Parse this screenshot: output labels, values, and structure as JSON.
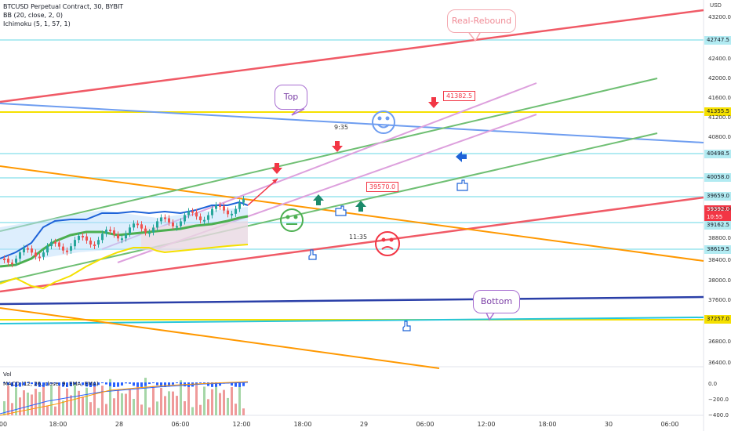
{
  "header": {
    "symbol_line": "BTCUSD Perpetual Contract, 30, BYBIT",
    "bb_line": "BB (20, close, 2, 0)",
    "ichimoku_line": "Ichimoku (5, 1, 57, 1)"
  },
  "axis": {
    "currency": "USD",
    "price_ticks": [
      "43200.0",
      "42400.0",
      "42000.0",
      "41600.0",
      "41200.0",
      "40800.0",
      "39600.0",
      "38800.0",
      "38400.0",
      "38000.0",
      "37600.0",
      "36800.0",
      "36400.0"
    ],
    "time_ticks": [
      "00",
      "18:00",
      "28",
      "06:00",
      "12:00",
      "18:00",
      "29",
      "06:00",
      "12:00",
      "18:00",
      "30",
      "06:00"
    ],
    "level_labels": [
      "42747.5",
      "41355.5",
      "40498.5",
      "40058.0",
      "39659.0",
      "39162.5",
      "38619.5",
      "37257.0"
    ],
    "current_price": "39392.0",
    "countdown": "10:55",
    "macd_ticks": [
      "0.0",
      "−200.0",
      "−400.0"
    ]
  },
  "callouts": {
    "real_rebound": "Real-Rebound",
    "top": "Top",
    "bottom": "Bottom"
  },
  "box_labels": {
    "upper": "41382.5",
    "lower": "39570.0"
  },
  "annotations": {
    "time_a": "9:35",
    "time_b": "11:35"
  },
  "subpanes": {
    "vol_label": "Vol",
    "macd_label": "MACD (12, 26, close, 9, EMA, EMA)"
  },
  "colors": {
    "red": "#f23645",
    "green": "#2e9e5b",
    "blue_line": "#5b8def",
    "yellow": "#f5e000",
    "orange": "#ff9800",
    "navy": "#2a3fa8",
    "teal": "#26c6da",
    "purple": "#8e44ad",
    "pink": "#e0a0e0"
  }
}
